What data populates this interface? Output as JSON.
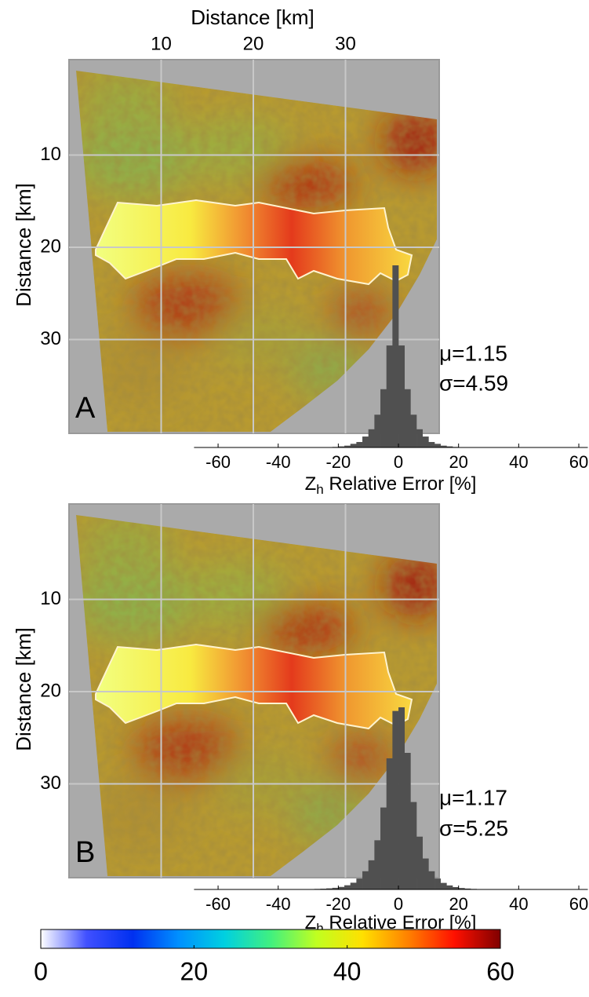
{
  "chart_data": [
    {
      "type": "heatmap",
      "panel_label": "A",
      "xlabel": "Distance [km]",
      "ylabel": "Distance [km]",
      "xlim": [
        0,
        40
      ],
      "ylim": [
        0,
        40
      ],
      "y_inverted": true,
      "xticks": [
        10,
        20,
        30
      ],
      "yticks": [
        10,
        20,
        30
      ],
      "xtick_labels": true,
      "grid": true
    },
    {
      "type": "histogram",
      "color": "#505050",
      "bins": [
        -30,
        -28,
        -26,
        -24,
        -22,
        -20,
        -18,
        -16,
        -14,
        -12,
        -10,
        -8,
        -6,
        -4,
        -2,
        0,
        2,
        4,
        6,
        8,
        10,
        12,
        14,
        16,
        18,
        20,
        22,
        24,
        26,
        28,
        30
      ],
      "counts": [
        0,
        0.1,
        0.1,
        0.2,
        0.3,
        0.6,
        1,
        2,
        3,
        6,
        10,
        18,
        32,
        56,
        100,
        56,
        32,
        18,
        10,
        6,
        3,
        2,
        1,
        0.6,
        0.3,
        0.2,
        0.1,
        0.1,
        0,
        0
      ],
      "xlim": [
        -68,
        63
      ],
      "ylim": [
        0,
        100
      ],
      "xticks": [
        -60,
        -40,
        -20,
        0,
        20,
        40,
        60
      ],
      "xlabel_symbol": "Z",
      "xlabel_subscript": "h",
      "xlabel": " Relative Error [%]",
      "annotations": [
        "μ=1.15",
        "σ=4.59"
      ]
    },
    {
      "type": "heatmap",
      "panel_label": "B",
      "ylabel": "Distance [km]",
      "xlim": [
        0,
        40
      ],
      "ylim": [
        0,
        40
      ],
      "y_inverted": true,
      "xticks": [
        10,
        20,
        30
      ],
      "yticks": [
        10,
        20,
        30
      ],
      "xtick_labels": false,
      "grid": true
    },
    {
      "type": "histogram",
      "color": "#505050",
      "bins": [
        -30,
        -28,
        -26,
        -24,
        -22,
        -20,
        -18,
        -16,
        -14,
        -12,
        -10,
        -8,
        -6,
        -4,
        -2,
        0,
        2,
        4,
        6,
        8,
        10,
        12,
        14,
        16,
        18,
        20,
        22,
        24,
        26,
        28,
        30
      ],
      "counts": [
        0.2,
        0.3,
        0.4,
        0.6,
        0.9,
        1.4,
        2.3,
        3.7,
        6,
        10,
        16,
        27,
        45,
        72,
        98,
        100,
        75,
        48,
        29,
        17,
        10,
        6,
        3.6,
        2.2,
        1.3,
        0.8,
        0.5,
        0.3,
        0.2,
        0.1
      ],
      "xlim": [
        -68,
        63
      ],
      "ylim": [
        0,
        100
      ],
      "xticks": [
        -60,
        -40,
        -20,
        0,
        20,
        40,
        60
      ],
      "xlabel_symbol": "Z",
      "xlabel_subscript": "h",
      "xlabel": " Relative Error [%]",
      "annotations": [
        "μ=1.17",
        "σ=5.25"
      ]
    },
    {
      "type": "colorbar",
      "clim": [
        0,
        60
      ],
      "ticks": [
        0,
        20,
        40,
        60
      ],
      "colors": [
        "#ffffff",
        "#4050ff",
        "#0030f0",
        "#0090ff",
        "#00d0e0",
        "#40f080",
        "#c0ff20",
        "#ffe000",
        "#ff8000",
        "#ff1000",
        "#800000"
      ]
    }
  ]
}
